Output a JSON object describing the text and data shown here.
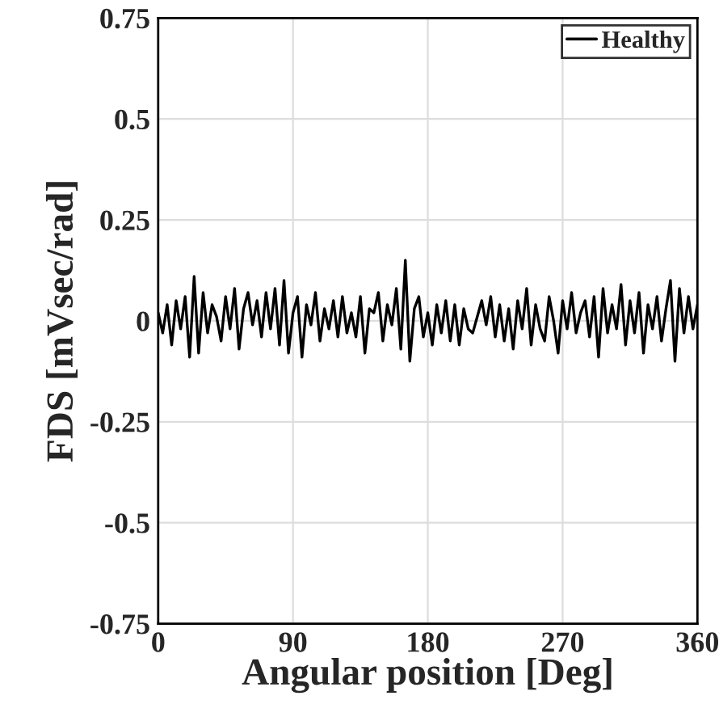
{
  "chart_data": {
    "type": "line",
    "xlabel": "Angular position [Deg]",
    "ylabel": "FDS [mVsec/rad]",
    "xlim": [
      0,
      360
    ],
    "ylim": [
      -0.75,
      0.75
    ],
    "xticks": [
      0,
      90,
      180,
      270,
      360
    ],
    "yticks": [
      -0.75,
      -0.5,
      -0.25,
      0,
      0.25,
      0.5,
      0.75
    ],
    "grid": true,
    "legend": "top right",
    "line_style": "solid",
    "marker": "none",
    "series": [
      {
        "name": "Healthy",
        "color": "#000000",
        "x": [
          0,
          3,
          6,
          9,
          12,
          15,
          18,
          21,
          24,
          27,
          30,
          33,
          36,
          39,
          42,
          45,
          48,
          51,
          54,
          57,
          60,
          63,
          66,
          69,
          72,
          75,
          78,
          81,
          84,
          87,
          90,
          93,
          96,
          99,
          102,
          105,
          108,
          111,
          114,
          117,
          120,
          123,
          126,
          129,
          132,
          135,
          138,
          141,
          144,
          147,
          150,
          153,
          156,
          159,
          162,
          165,
          168,
          171,
          174,
          177,
          180,
          183,
          186,
          189,
          192,
          195,
          198,
          201,
          204,
          207,
          210,
          213,
          216,
          219,
          222,
          225,
          228,
          231,
          234,
          237,
          240,
          243,
          246,
          249,
          252,
          255,
          258,
          261,
          264,
          267,
          270,
          273,
          276,
          279,
          282,
          285,
          288,
          291,
          294,
          297,
          300,
          303,
          306,
          309,
          312,
          315,
          318,
          321,
          324,
          327,
          330,
          333,
          336,
          339,
          342,
          345,
          348,
          351,
          354,
          357,
          360
        ],
        "values": [
          0.02,
          -0.03,
          0.04,
          -0.06,
          0.05,
          -0.02,
          0.06,
          -0.09,
          0.11,
          -0.08,
          0.07,
          -0.03,
          0.04,
          0.01,
          -0.05,
          0.06,
          -0.02,
          0.08,
          -0.07,
          0.03,
          0.07,
          -0.01,
          0.05,
          -0.04,
          0.07,
          -0.02,
          0.08,
          -0.06,
          0.1,
          -0.08,
          0.02,
          0.06,
          -0.09,
          0.04,
          -0.01,
          0.07,
          -0.05,
          0.03,
          -0.02,
          0.05,
          -0.04,
          0.06,
          -0.03,
          0.02,
          -0.04,
          0.06,
          -0.08,
          0.03,
          0.02,
          0.07,
          -0.05,
          0.04,
          -0.01,
          0.08,
          -0.07,
          0.15,
          -0.1,
          0.03,
          0.06,
          -0.04,
          0.02,
          -0.06,
          0.04,
          -0.03,
          0.05,
          -0.05,
          0.04,
          -0.06,
          0.03,
          -0.02,
          -0.03,
          0.01,
          0.05,
          -0.01,
          0.06,
          -0.04,
          0.04,
          -0.05,
          0.03,
          -0.07,
          0.05,
          -0.02,
          0.08,
          -0.06,
          0.04,
          -0.02,
          -0.05,
          0.06,
          0.0,
          -0.08,
          0.05,
          -0.02,
          0.07,
          -0.03,
          0.02,
          0.05,
          -0.04,
          0.06,
          -0.09,
          0.08,
          -0.03,
          0.04,
          -0.02,
          0.09,
          -0.06,
          0.05,
          -0.03,
          0.07,
          -0.08,
          0.04,
          -0.02,
          0.06,
          -0.05,
          0.03,
          0.1,
          -0.1,
          0.08,
          -0.03,
          0.06,
          -0.02,
          0.04
        ]
      }
    ]
  }
}
